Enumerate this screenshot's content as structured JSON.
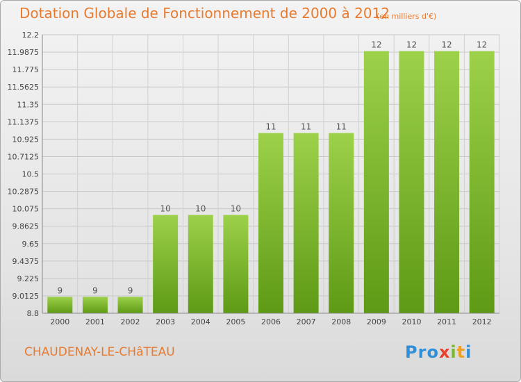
{
  "header": {
    "title": "Dotation Globale de Fonctionnement de 2000 à 2012",
    "subtitle": "(en milliers d'€)"
  },
  "footer": {
    "commune": "CHAUDENAY-LE-CHâTEAU",
    "logo": [
      "P",
      "r",
      "o",
      "x",
      "i",
      "t",
      "i"
    ]
  },
  "colors": {
    "title": "#e87a2e",
    "bar_top": "#9dd14a",
    "bar_bottom": "#5e9a15",
    "logo": [
      "#2f8fd8",
      "#2f8fd8",
      "#2f8fd8",
      "#e8422e",
      "#78b82a",
      "#f0a020",
      "#2f8fd8"
    ]
  },
  "chart_data": {
    "type": "bar",
    "title": "Dotation Globale de Fonctionnement de 2000 à 2012",
    "subtitle": "(en milliers d'€)",
    "xlabel": "",
    "ylabel": "",
    "categories": [
      "2000",
      "2001",
      "2002",
      "2003",
      "2004",
      "2005",
      "2006",
      "2007",
      "2008",
      "2009",
      "2010",
      "2011",
      "2012"
    ],
    "values": [
      9,
      9,
      9,
      10,
      10,
      10,
      11,
      11,
      11,
      12,
      12,
      12,
      12
    ],
    "data_labels": [
      "9",
      "9",
      "9",
      "10",
      "10",
      "10",
      "11",
      "11",
      "11",
      "12",
      "12",
      "12",
      "12"
    ],
    "ylim": [
      8.8,
      12.2
    ],
    "yticks": [
      8.8,
      9.0125,
      9.225,
      9.4375,
      9.65,
      9.8625,
      10.075,
      10.2875,
      10.5,
      10.7125,
      10.925,
      11.1375,
      11.35,
      11.5625,
      11.775,
      11.9875,
      12.2
    ],
    "ytick_labels": [
      "8.8",
      "9.0125",
      "9.225",
      "9.4375",
      "9.65",
      "9.8625",
      "10.075",
      "10.2875",
      "10.5",
      "10.7125",
      "10.925",
      "11.1375",
      "11.35",
      "11.5625",
      "11.775",
      "11.9875",
      "12.2"
    ],
    "grid": true,
    "legend": "none"
  }
}
